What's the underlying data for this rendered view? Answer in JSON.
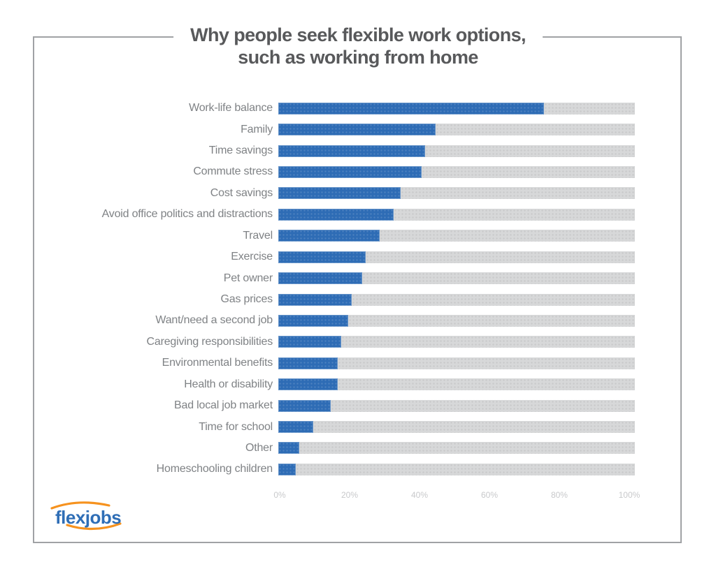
{
  "title": {
    "line1": "Why people seek flexible work options,",
    "line2": "such as working from home"
  },
  "logo": {
    "text": "flexjobs"
  },
  "colors": {
    "bar_blue": "#2e6cb5",
    "track_gray": "#d7d8d9",
    "title_gray": "#58595b",
    "label_gray": "#7f8285",
    "axis_gray": "#c8c9cb",
    "border_gray": "#a0a2a5",
    "logo_blue": "#2f6eb6",
    "logo_orange": "#f6921e"
  },
  "chart_data": {
    "type": "bar",
    "orientation": "horizontal",
    "title": "Why people seek flexible work options, such as working from home",
    "xlabel": "",
    "ylabel": "",
    "xlim": [
      0,
      102
    ],
    "grid": false,
    "legend": false,
    "categories": [
      "Work-life balance",
      "Family",
      "Time savings",
      "Commute stress",
      "Cost savings",
      "Avoid office politics and distractions",
      "Travel",
      "Exercise",
      "Pet owner",
      "Gas prices",
      "Want/need a second job",
      "Caregiving responsibilities",
      "Environmental benefits",
      "Health or disability",
      "Bad local job market",
      "Time for school",
      "Other",
      "Homeschooling children"
    ],
    "values": [
      76,
      45,
      42,
      41,
      35,
      33,
      29,
      25,
      24,
      21,
      20,
      18,
      17,
      17,
      15,
      10,
      6,
      5
    ],
    "x_ticks": [
      "0%",
      "20%",
      "40%",
      "60%",
      "80%",
      "100%"
    ],
    "x_tick_values": [
      0,
      20,
      40,
      60,
      80,
      100
    ]
  }
}
